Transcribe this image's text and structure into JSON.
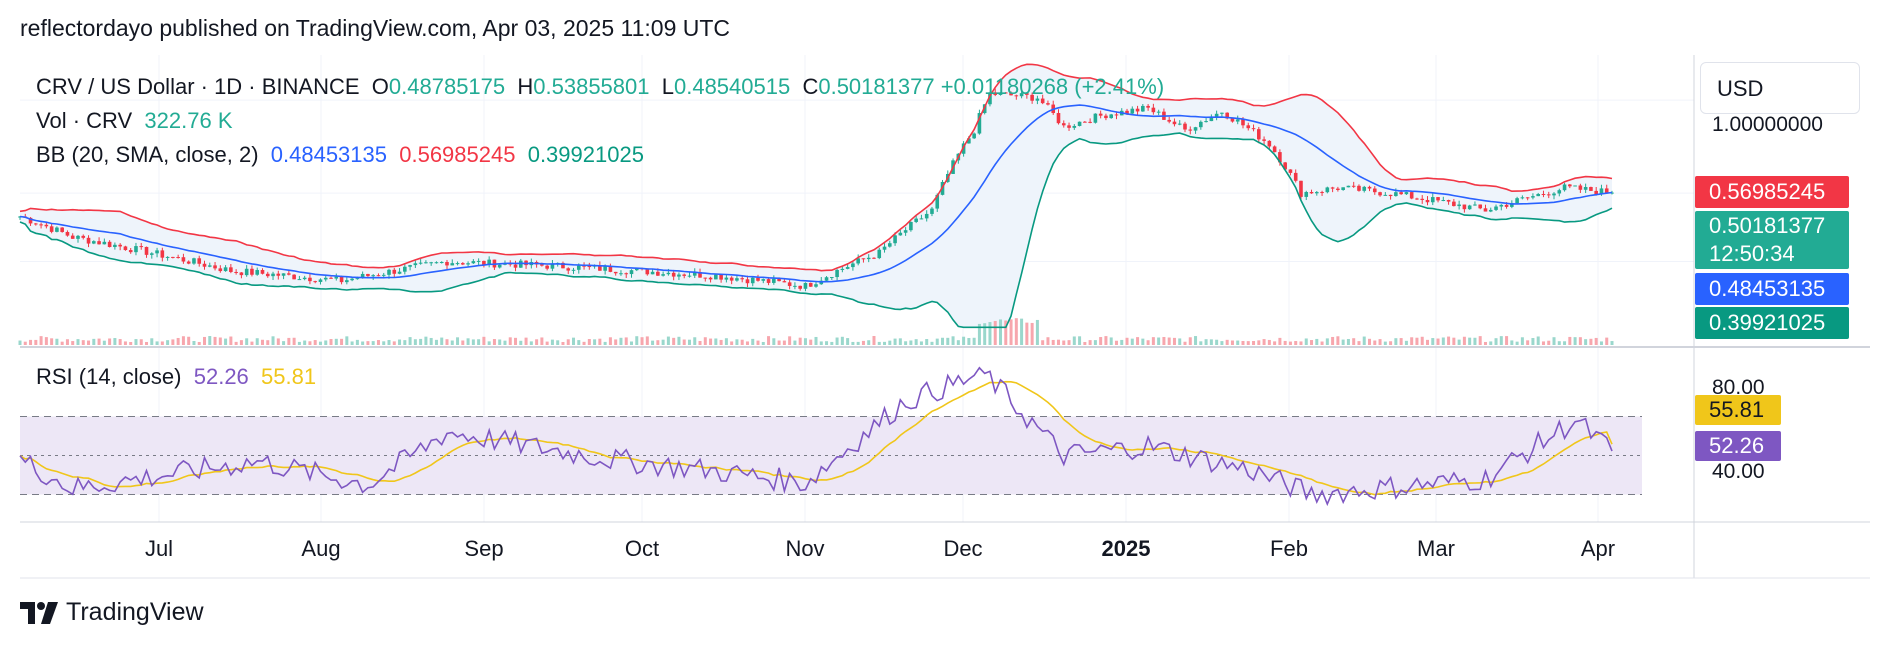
{
  "header": {
    "publish_line": "reflectordayo published on TradingView.com, Apr 03, 2025 11:09 UTC"
  },
  "legend": {
    "symbol": "CRV / US Dollar · 1D · BINANCE",
    "o_label": "O",
    "o_value": "0.48785175",
    "h_label": "H",
    "h_value": "0.53855801",
    "l_label": "L",
    "l_value": "0.48540515",
    "c_label": "C",
    "c_value": "0.50181377",
    "change": "+0.01180268 (+2.41%)",
    "vol_label": "Vol · CRV",
    "vol_value": "322.76 K",
    "bb_label": "BB (20, SMA, close, 2)",
    "bb_basis": "0.48453135",
    "bb_upper": "0.56985245",
    "bb_lower": "0.39921025"
  },
  "rsi_legend": {
    "label": "RSI (14, close)",
    "rsi_value": "52.26",
    "ma_value": "55.81"
  },
  "price_axis": {
    "currency": "USD",
    "tick_label": "1.00000000",
    "tags": {
      "upper": "0.56985245",
      "close": "0.50181377",
      "countdown": "12:50:34",
      "basis": "0.48453135",
      "lower": "0.39921025"
    }
  },
  "rsi_axis": {
    "upper_label": "80.00",
    "lower_label": "40.00",
    "ma_tag": "55.81",
    "rsi_tag": "52.26"
  },
  "time_axis": [
    "Jul",
    "Aug",
    "Sep",
    "Oct",
    "Nov",
    "Dec",
    "2025",
    "Feb",
    "Mar",
    "Apr"
  ],
  "brand": {
    "name": "TradingView"
  },
  "colors": {
    "up": "#22ab94",
    "down": "#f23645",
    "bb_basis": "#2962ff",
    "bb_upper": "#f23645",
    "bb_lower": "#089981",
    "bb_fill": "#eef4fb",
    "rsi": "#7e57c2",
    "rsi_ma": "#f0c61a",
    "rsi_band": "#ede7f6",
    "grid": "#f0f3fa"
  },
  "chart_data": [
    {
      "type": "candlestick",
      "title": "CRV / US Dollar · 1D · BINANCE",
      "x_range": [
        "2024-06-05",
        "2025-04-03"
      ],
      "ylim": [
        0.18,
        1.3
      ],
      "key_points": [
        {
          "date": "2024-06-05",
          "close": 0.42
        },
        {
          "date": "2024-06-15",
          "close": 0.36
        },
        {
          "date": "2024-07-15",
          "close": 0.28
        },
        {
          "date": "2024-08-05",
          "close": 0.26
        },
        {
          "date": "2024-08-25",
          "close": 0.3
        },
        {
          "date": "2024-09-15",
          "close": 0.29
        },
        {
          "date": "2024-10-15",
          "close": 0.27
        },
        {
          "date": "2024-11-01",
          "close": 0.25
        },
        {
          "date": "2024-11-15",
          "close": 0.32
        },
        {
          "date": "2024-11-25",
          "close": 0.44
        },
        {
          "date": "2024-12-03",
          "close": 0.8
        },
        {
          "date": "2024-12-06",
          "close": 1.05
        },
        {
          "date": "2024-12-15",
          "close": 1.02
        },
        {
          "date": "2024-12-20",
          "close": 0.82
        },
        {
          "date": "2024-12-28",
          "close": 0.9
        },
        {
          "date": "2025-01-05",
          "close": 0.94
        },
        {
          "date": "2025-01-12",
          "close": 0.8
        },
        {
          "date": "2025-01-19",
          "close": 0.92
        },
        {
          "date": "2025-01-28",
          "close": 0.72
        },
        {
          "date": "2025-02-03",
          "close": 0.5
        },
        {
          "date": "2025-02-10",
          "close": 0.52
        },
        {
          "date": "2025-02-20",
          "close": 0.5
        },
        {
          "date": "2025-03-10",
          "close": 0.44
        },
        {
          "date": "2025-03-25",
          "close": 0.52
        },
        {
          "date": "2025-04-03",
          "close": 0.5018
        }
      ],
      "last": {
        "open": 0.48785175,
        "high": 0.53855801,
        "low": 0.48540515,
        "close": 0.50181377
      },
      "bollinger_last": {
        "basis": 0.48453135,
        "upper": 0.56985245,
        "lower": 0.39921025
      },
      "volume_last": "322.76 K"
    },
    {
      "type": "line",
      "title": "RSI (14, close)",
      "ylim": [
        20,
        100
      ],
      "bands": [
        30,
        50,
        70
      ],
      "key_points": [
        {
          "date": "2024-06-05",
          "rsi": 48
        },
        {
          "date": "2024-06-15",
          "rsi": 33
        },
        {
          "date": "2024-07-20",
          "rsi": 47
        },
        {
          "date": "2024-08-10",
          "rsi": 35
        },
        {
          "date": "2024-08-25",
          "rsi": 62
        },
        {
          "date": "2024-09-25",
          "rsi": 48
        },
        {
          "date": "2024-10-15",
          "rsi": 42
        },
        {
          "date": "2024-11-01",
          "rsi": 36
        },
        {
          "date": "2024-11-20",
          "rsi": 78
        },
        {
          "date": "2024-12-05",
          "rsi": 92
        },
        {
          "date": "2024-12-20",
          "rsi": 50
        },
        {
          "date": "2025-01-05",
          "rsi": 55
        },
        {
          "date": "2025-01-25",
          "rsi": 42
        },
        {
          "date": "2025-02-05",
          "rsi": 30
        },
        {
          "date": "2025-03-10",
          "rsi": 38
        },
        {
          "date": "2025-03-27",
          "rsi": 68
        },
        {
          "date": "2025-04-03",
          "rsi": 52.26
        }
      ],
      "last": {
        "rsi": 52.26,
        "rsi_ma": 55.81
      }
    }
  ]
}
